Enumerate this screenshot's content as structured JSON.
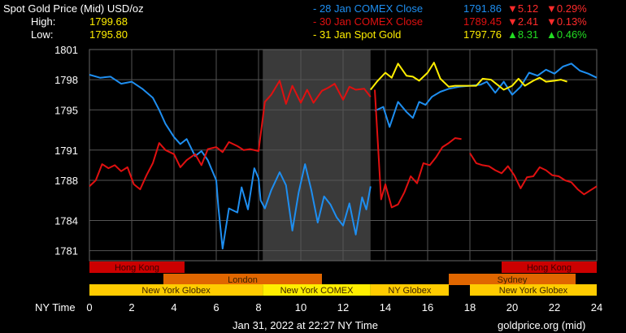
{
  "header": {
    "title": "Spot Gold Price (Mid) USD/oz",
    "high_label": "High:",
    "high_value": "1799.68",
    "low_label": "Low:",
    "low_value": "1795.80",
    "series_rows": [
      {
        "name": "- 28 Jan COMEX Close",
        "price": "1791.86",
        "change": "▼5.12",
        "pct": "▼0.29%",
        "color": "#1e8ef0",
        "change_color": "#ff2b2b"
      },
      {
        "name": "- 30 Jan COMEX Close",
        "price": "1789.45",
        "change": "▼2.41",
        "pct": "▼0.13%",
        "color": "#e01010",
        "change_color": "#ff2b2b"
      },
      {
        "name": "- 31 Jan Spot Gold",
        "price": "1797.76",
        "change": "▲8.31",
        "pct": "▲0.46%",
        "color": "#ffee00",
        "change_color": "#22dd22"
      }
    ]
  },
  "footer": {
    "timestamp": "Jan 31, 2022 at 22:27 NY Time",
    "source": "goldprice.org (mid)"
  },
  "chart_data": {
    "type": "line",
    "xlabel": "NY Time",
    "xlim": [
      0,
      24
    ],
    "ylim": [
      1780,
      1801
    ],
    "x_ticks": [
      0,
      2,
      4,
      6,
      8,
      10,
      12,
      14,
      16,
      18,
      20,
      22,
      24
    ],
    "y_ticks": [
      1781,
      1784,
      1788,
      1791,
      1795,
      1798,
      1801
    ],
    "y_tick_labels": [
      "1781",
      "1784",
      "1788",
      "1791",
      "1795",
      "1798",
      "1801"
    ],
    "shaded_range": [
      8.2,
      13.3
    ],
    "series": [
      {
        "name": "28 Jan COMEX Close",
        "color": "#1e8ef0",
        "x": [
          0,
          0.5,
          1,
          1.5,
          2,
          2.5,
          3,
          3.3,
          3.6,
          4,
          4.3,
          4.6,
          5,
          5.3,
          5.6,
          6,
          6.1,
          6.3,
          6.6,
          7,
          7.2,
          7.5,
          7.8,
          8,
          8.1,
          8.3,
          8.6,
          9,
          9.3,
          9.6,
          9.9,
          10.2,
          10.5,
          10.8,
          11.1,
          11.4,
          11.7,
          12,
          12.3,
          12.6,
          12.9,
          13.1,
          13.3,
          null,
          13.5,
          13.9,
          14.2,
          14.6,
          15,
          15.3,
          15.6,
          15.9,
          16.2,
          16.6,
          17,
          17.5,
          18,
          18.5,
          18.8,
          19.2,
          19.6,
          20,
          20.4,
          20.8,
          21.2,
          21.6,
          22,
          22.4,
          22.8,
          23.2,
          23.6,
          24
        ],
        "y": [
          1798.5,
          1798.2,
          1798.3,
          1797.6,
          1797.8,
          1797.1,
          1796.2,
          1795.0,
          1793.6,
          1792.3,
          1791.6,
          1792.1,
          1790.4,
          1790.9,
          1790.0,
          1788.0,
          1785.3,
          1781.2,
          1785.2,
          1784.8,
          1787.3,
          1785.1,
          1789.2,
          1788.2,
          1786.0,
          1785.2,
          1787.0,
          1788.8,
          1787.5,
          1783.0,
          1786.8,
          1789.6,
          1787.0,
          1783.8,
          1786.4,
          1785.6,
          1784.3,
          1783.5,
          1785.7,
          1782.6,
          1786.3,
          1785.1,
          1787.4,
          null,
          1794.9,
          1795.3,
          1793.3,
          1795.8,
          1794.8,
          1794.2,
          1795.8,
          1795.5,
          1796.3,
          1796.8,
          1797.1,
          1797.3,
          1797.4,
          1797.5,
          1797.8,
          1796.7,
          1797.8,
          1796.5,
          1797.3,
          1798.7,
          1798.4,
          1799.0,
          1798.6,
          1799.3,
          1799.6,
          1798.9,
          1798.6,
          1798.2
        ]
      },
      {
        "name": "30 Jan COMEX Close",
        "color": "#e01010",
        "x": [
          0,
          0.3,
          0.6,
          0.9,
          1.2,
          1.5,
          1.8,
          2.1,
          2.4,
          2.7,
          3.0,
          3.3,
          3.6,
          4.0,
          4.3,
          4.6,
          5.0,
          5.3,
          5.6,
          6.0,
          6.3,
          6.6,
          7.0,
          7.3,
          7.6,
          8.0,
          8.3,
          8.6,
          9.0,
          9.3,
          9.6,
          10.0,
          10.3,
          10.6,
          11.0,
          11.3,
          11.6,
          12.0,
          12.3,
          12.6,
          13.0,
          13.3,
          null,
          13.5,
          13.8,
          14.0,
          14.3,
          14.6,
          14.9,
          15.2,
          15.5,
          15.8,
          16.1,
          16.4,
          16.7,
          17.0,
          17.3,
          17.6,
          null,
          18.0,
          18.3,
          18.6,
          18.9,
          19.2,
          19.5,
          19.8,
          20.1,
          20.4,
          20.7,
          21.0,
          21.3,
          21.6,
          21.9,
          22.2,
          22.5,
          22.8,
          23.1,
          23.4,
          23.7,
          24
        ],
        "y": [
          1787.4,
          1788.0,
          1789.6,
          1789.2,
          1789.5,
          1788.9,
          1789.3,
          1787.6,
          1787.1,
          1788.5,
          1789.7,
          1791.7,
          1791.0,
          1790.6,
          1789.3,
          1790.0,
          1790.6,
          1789.5,
          1791.1,
          1791.3,
          1790.8,
          1791.8,
          1791.4,
          1791.0,
          1791.1,
          1790.9,
          1795.8,
          1796.5,
          1797.9,
          1795.6,
          1797.4,
          1795.7,
          1797.0,
          1795.7,
          1796.9,
          1797.2,
          1797.6,
          1796.0,
          1797.3,
          1797.0,
          1797.1,
          1796.3,
          null,
          1797.0,
          1786.1,
          1787.6,
          1785.3,
          1785.6,
          1786.8,
          1788.4,
          1787.7,
          1789.7,
          1789.5,
          1790.3,
          1791.3,
          1791.7,
          1792.2,
          1792.1,
          null,
          1790.7,
          1789.7,
          1789.5,
          1789.4,
          1789.0,
          1788.7,
          1789.4,
          1788.5,
          1787.2,
          1788.3,
          1788.4,
          1789.3,
          1789.0,
          1788.5,
          1788.4,
          1788.0,
          1787.8,
          1787.1,
          1786.6,
          1787.0,
          1787.4
        ]
      },
      {
        "name": "31 Jan Spot Gold",
        "color": "#ffee00",
        "x": [
          13.3,
          13.6,
          14.0,
          14.3,
          14.6,
          15.0,
          15.3,
          15.6,
          16.0,
          16.3,
          16.6,
          17.0,
          17.3,
          17.6,
          18.0,
          18.3,
          18.6,
          19.0,
          19.3,
          19.6,
          20.0,
          20.3,
          20.6,
          21.0,
          21.3,
          21.6,
          22.0,
          22.3,
          22.6
        ],
        "y": [
          1797.0,
          1797.8,
          1798.7,
          1798.2,
          1799.6,
          1798.4,
          1798.3,
          1797.9,
          1798.7,
          1799.7,
          1798.1,
          1797.3,
          1797.4,
          1797.4,
          1797.4,
          1797.4,
          1798.1,
          1798.0,
          1797.5,
          1797.0,
          1797.4,
          1798.1,
          1797.4,
          1797.9,
          1798.2,
          1797.8,
          1797.9,
          1798.0,
          1797.8
        ]
      }
    ],
    "sessions": [
      {
        "name": "Hong Kong",
        "start": 0,
        "end": 4.5,
        "row": 0,
        "color": "#cc0000"
      },
      {
        "name": "Hong Kong",
        "start": 19.5,
        "end": 24,
        "row": 0,
        "color": "#cc0000"
      },
      {
        "name": "London",
        "start": 3.5,
        "end": 11,
        "row": 1,
        "color": "#e06600"
      },
      {
        "name": "Sydney",
        "start": 17,
        "end": 23,
        "row": 1,
        "color": "#e06600"
      },
      {
        "name": "New York Globex",
        "start": 0,
        "end": 8.2,
        "row": 2,
        "color": "#ffcc00"
      },
      {
        "name": "New York COMEX",
        "start": 8.2,
        "end": 13.3,
        "row": 2,
        "color": "#ffee00"
      },
      {
        "name": "NY Globex",
        "start": 13.3,
        "end": 17,
        "row": 2,
        "color": "#ffcc00"
      },
      {
        "name": "New York Globex",
        "start": 18,
        "end": 24,
        "row": 2,
        "color": "#ffcc00"
      }
    ]
  }
}
